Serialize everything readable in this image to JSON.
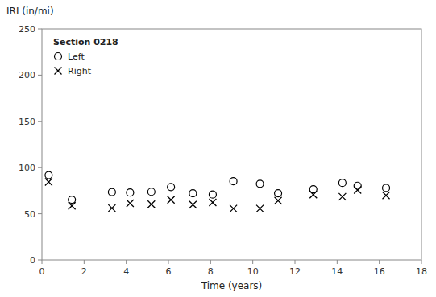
{
  "chart_data": {
    "type": "scatter",
    "legend_title": "Section 0218",
    "x_label": "Time (years)",
    "y_label": "IRI (in/mi)",
    "x": [
      0.32,
      1.42,
      3.32,
      4.18,
      5.19,
      6.12,
      7.16,
      8.1,
      9.08,
      10.34,
      11.2,
      12.87,
      14.25,
      14.97,
      16.32
    ],
    "series": [
      {
        "name": "Left",
        "color": "black",
        "marker": "circle",
        "values": [
          91.81,
          65.25,
          73.56,
          73.06,
          73.84,
          79.02,
          72.13,
          70.82,
          85.21,
          82.43,
          72.22,
          76.62,
          83.44,
          80.35,
          78.06
        ]
      },
      {
        "name": "Right",
        "color": "black",
        "marker": "x",
        "values": [
          84.51,
          58.59,
          56.11,
          61.36,
          60.29,
          65.13,
          59.83,
          62.27,
          55.62,
          55.62,
          64.21,
          70.72,
          68.47,
          75.79,
          69.91
        ]
      }
    ],
    "xlim": [
      0,
      18
    ],
    "ylim": [
      0,
      250
    ],
    "xticks": [
      0,
      2,
      4,
      6,
      8,
      10,
      12,
      14,
      16,
      18
    ],
    "yticks": [
      0,
      50,
      100,
      150,
      200,
      250
    ],
    "grid": false,
    "legend": "upper left"
  }
}
